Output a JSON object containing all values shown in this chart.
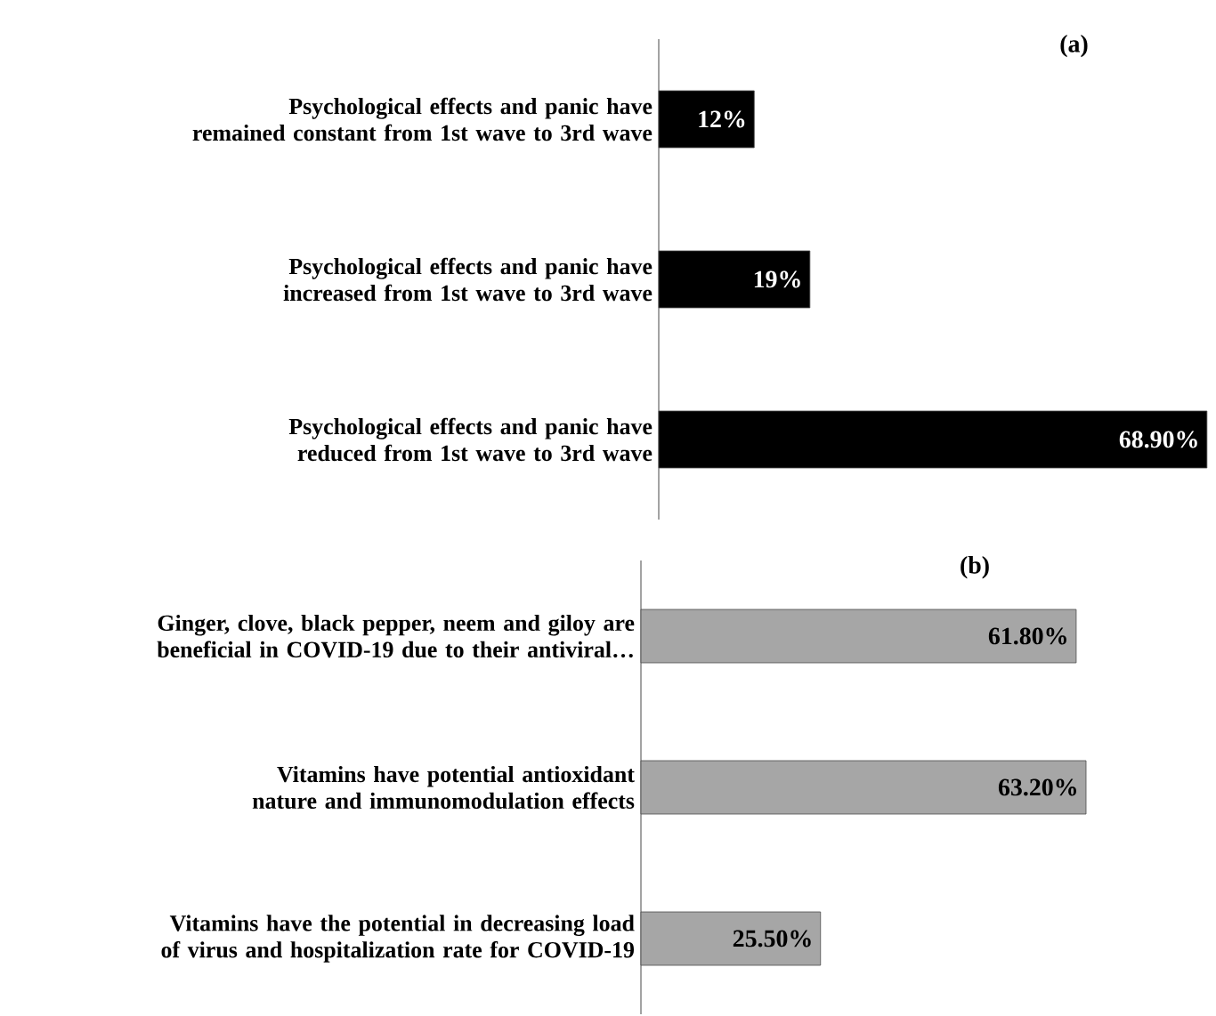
{
  "chart_data": [
    {
      "type": "bar",
      "orientation": "horizontal",
      "title": "(a)",
      "categories": [
        "Psychological effects and panic have remained constant from 1st wave to 3rd wave",
        "Psychological effects and panic have increased from 1st wave to 3rd wave",
        "Psychological effects and panic have reduced from 1st wave to 3rd wave"
      ],
      "values": [
        12,
        19,
        68.9
      ],
      "value_labels": [
        "12%",
        "19%",
        "68.90%"
      ],
      "color": "#000000"
    },
    {
      "type": "bar",
      "orientation": "horizontal",
      "title": "(b)",
      "categories": [
        "Ginger, clove, black pepper, neem and giloy are beneficial in COVID-19 due to their antiviral…",
        "Vitamins have potential antioxidant nature and immunomodulation effects",
        "Vitamins have the potential in decreasing load  of virus and hospitalization rate for COVID-19"
      ],
      "values": [
        61.8,
        63.2,
        25.5
      ],
      "value_labels": [
        "61.80%",
        "63.20%",
        "25.50%"
      ],
      "color": "#a6a6a6"
    }
  ]
}
